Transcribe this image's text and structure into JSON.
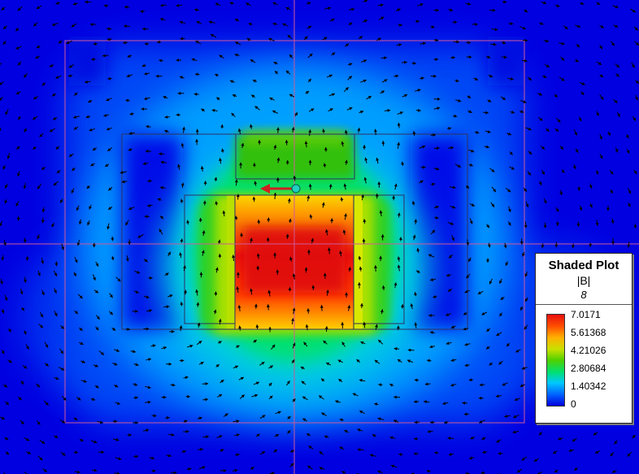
{
  "legend": {
    "title": "Shaded Plot",
    "quantity": "|B|",
    "scale_id": "8",
    "ticks": [
      "7.0171",
      "5.61368",
      "4.21026",
      "2.80684",
      "1.40342",
      "0"
    ]
  },
  "colors": {
    "background": "#0000e0",
    "scale": [
      "#0000dc",
      "#0060ff",
      "#00c8ff",
      "#00e070",
      "#50d000",
      "#c8e000",
      "#ffb000",
      "#ff5000",
      "#e81010"
    ],
    "arrow": "#000000",
    "outline": "#d05a9a",
    "probe_arrow": "#d02020",
    "probe_marker": "#20d0c0"
  },
  "field": {
    "max_value": 7.0171,
    "min_value": 0
  },
  "icons": {
    "probe": "probe-marker-icon"
  }
}
